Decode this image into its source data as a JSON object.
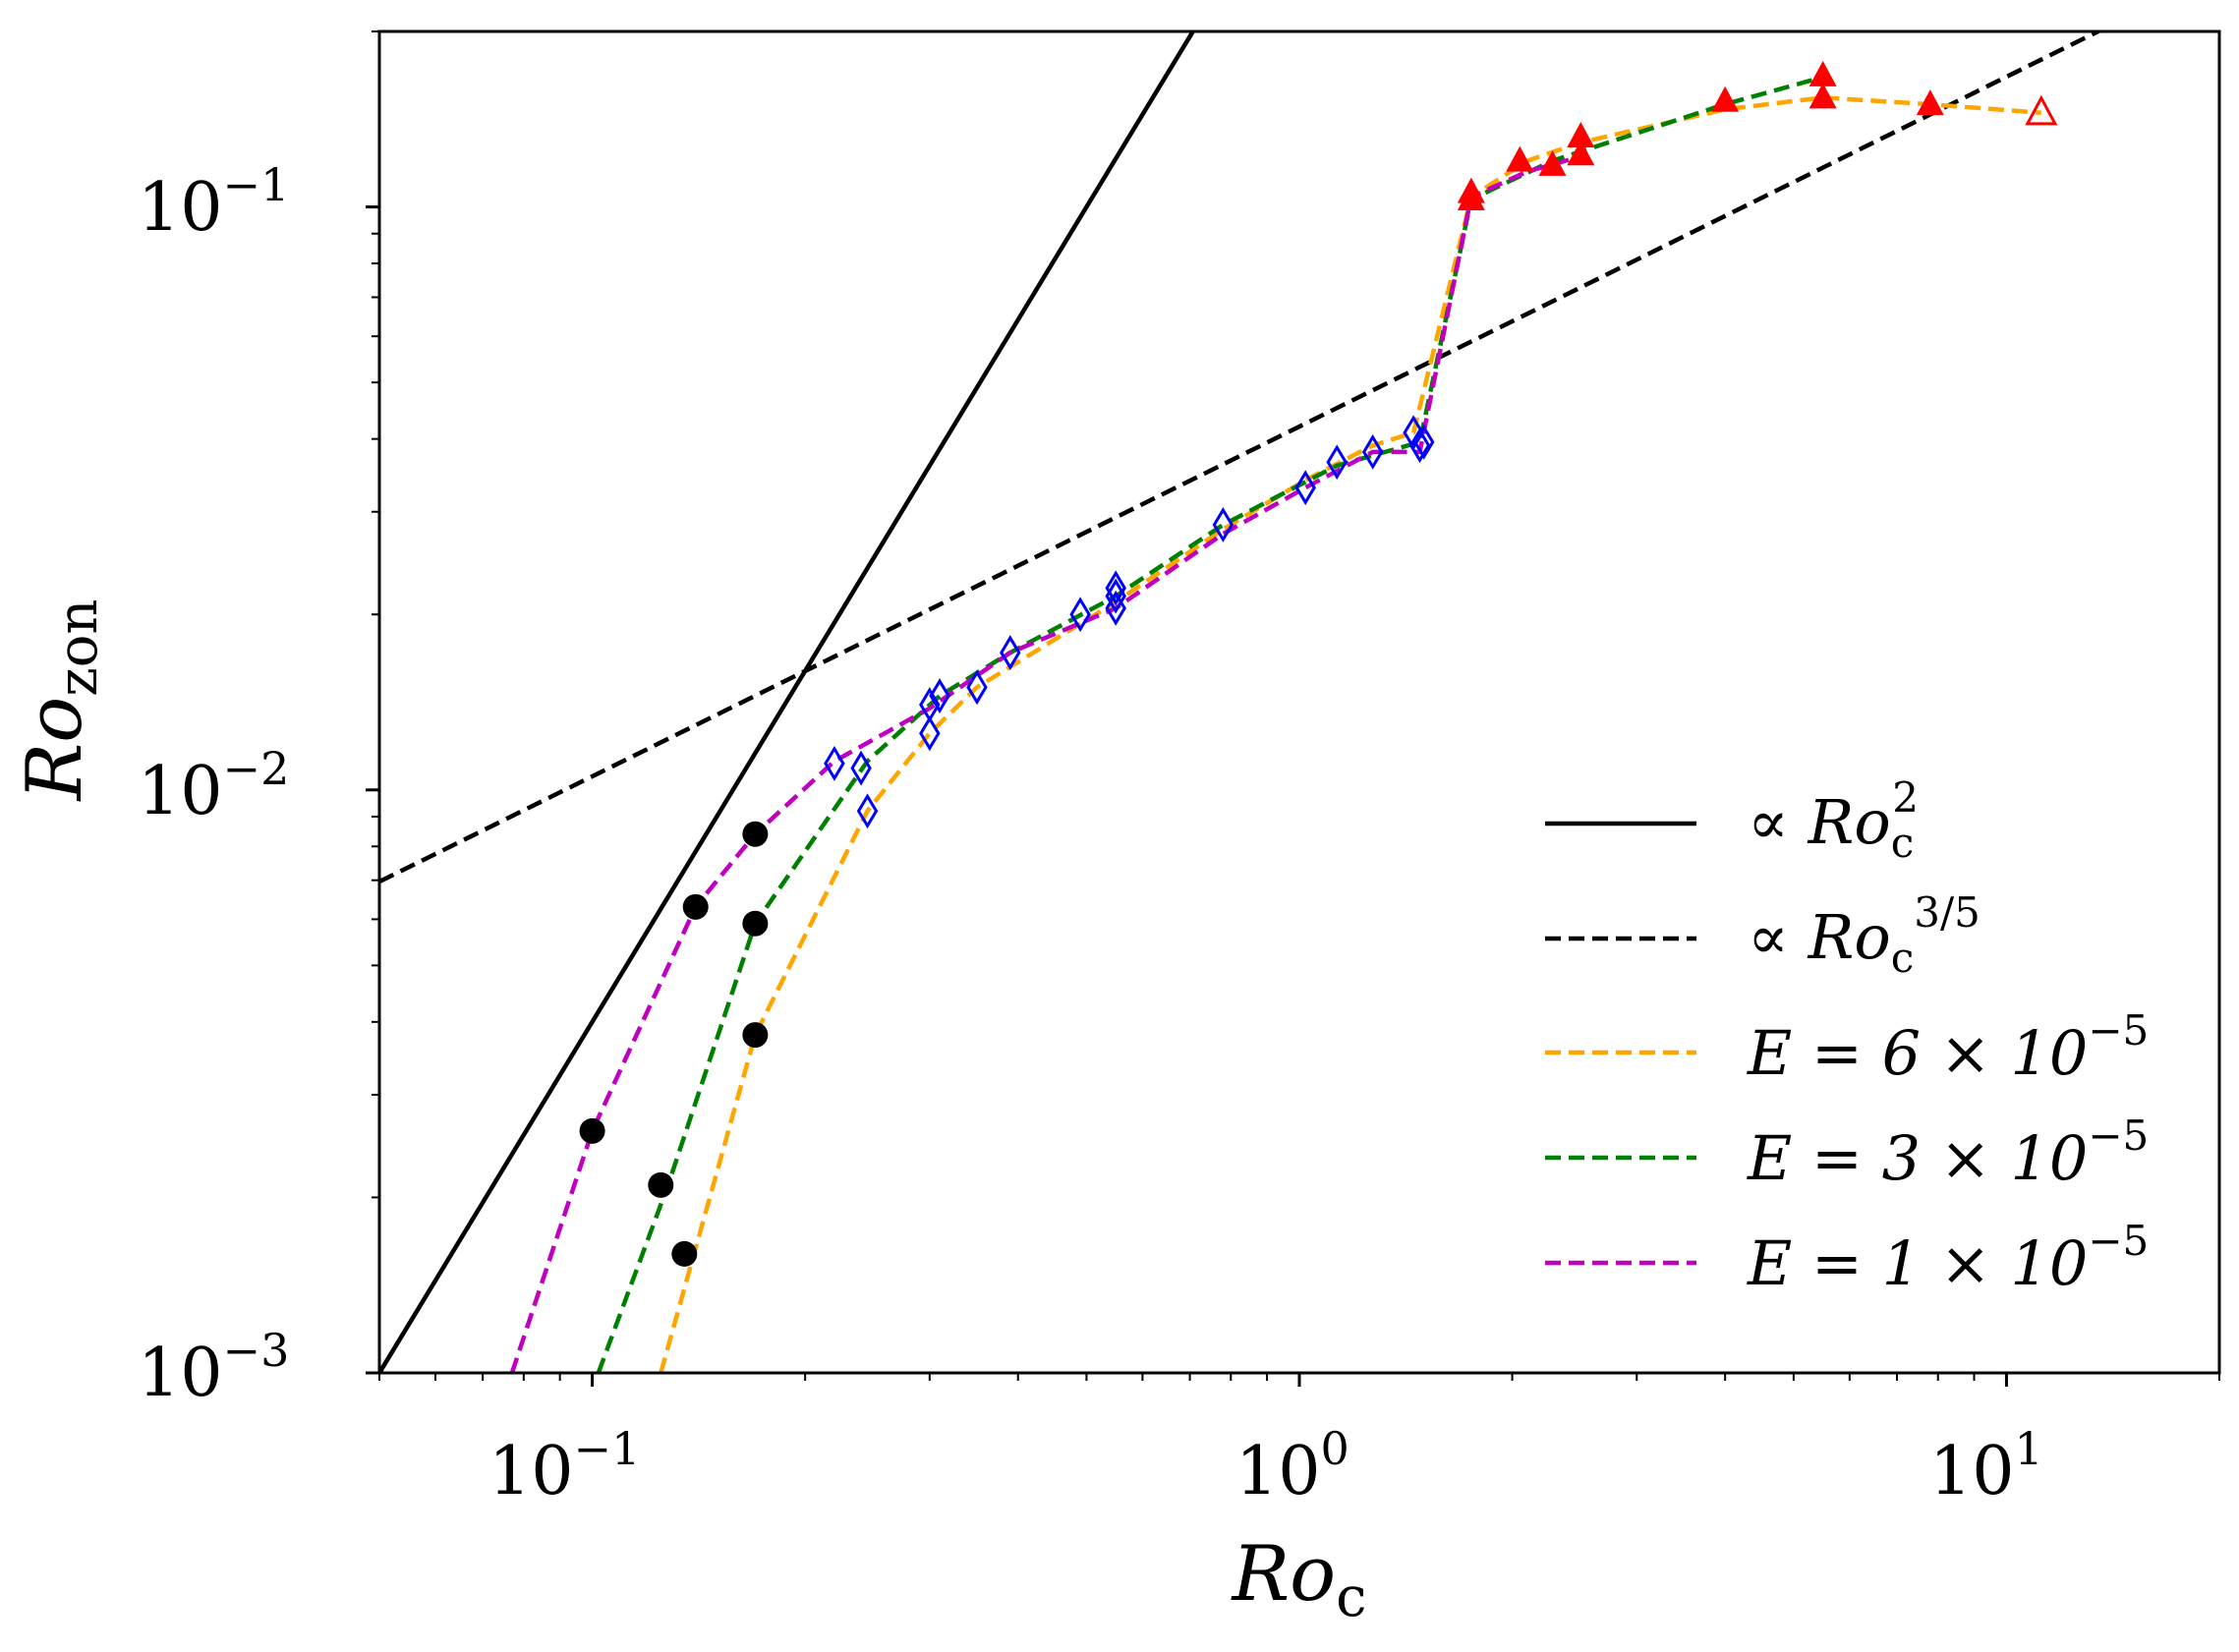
{
  "chart_data": {
    "type": "scatter",
    "title": "",
    "xlabel": "Ro_c",
    "ylabel": "Ro_zon",
    "xscale": "log",
    "yscale": "log",
    "xlim": [
      0.05,
      20
    ],
    "ylim": [
      0.001,
      0.2
    ],
    "xticks": [
      {
        "value": 0.1,
        "base": "10",
        "exp": "−1"
      },
      {
        "value": 1,
        "base": "10",
        "exp": "0"
      },
      {
        "value": 10,
        "base": "10",
        "exp": "1"
      }
    ],
    "yticks": [
      {
        "value": 0.001,
        "base": "10",
        "exp": "−3"
      },
      {
        "value": 0.01,
        "base": "10",
        "exp": "−2"
      },
      {
        "value": 0.1,
        "base": "10",
        "exp": "−1"
      }
    ],
    "reference_lines": [
      {
        "name": "∝ Ro_c^2",
        "power": 2,
        "coef": 0.4,
        "style": "solid",
        "color": "#000000",
        "legend_text": "∝ Ro",
        "legend_sub": "c",
        "legend_sup": "2"
      },
      {
        "name": "∝ Ro_c^3/5",
        "power": 0.6,
        "coef": 0.042,
        "style": "dashed",
        "color": "#000000",
        "legend_text": "∝ Ro",
        "legend_sub": "c",
        "legend_sup": "3/5"
      }
    ],
    "series": [
      {
        "name": "E = 6 × 10^-5",
        "legend_label": "E = 6 × 10",
        "legend_sup": "−5",
        "color": "#FFA500",
        "x": [
          0.125,
          0.17,
          0.245,
          0.3,
          0.35,
          0.55,
          0.78,
          1.02,
          1.27,
          1.45,
          1.75,
          2.1,
          2.5,
          4.0,
          5.5,
          7.8,
          11.2
        ],
        "y": [
          0.001,
          0.0038,
          0.0092,
          0.0125,
          0.015,
          0.021,
          0.028,
          0.034,
          0.039,
          0.041,
          0.104,
          0.12,
          0.129,
          0.147,
          0.154,
          0.15,
          0.145
        ]
      },
      {
        "name": "E = 3 × 10^-5",
        "legend_label": "E = 3 × 10",
        "legend_sup": "−5",
        "color": "#008000",
        "x": [
          0.102,
          0.128,
          0.17,
          0.245,
          0.31,
          0.39,
          0.55,
          0.78,
          1.13,
          1.48,
          1.75,
          2.28,
          4.0,
          5.5
        ],
        "y": [
          0.001,
          0.0021,
          0.0059,
          0.0112,
          0.0145,
          0.0172,
          0.0215,
          0.0285,
          0.036,
          0.0395,
          0.103,
          0.12,
          0.15,
          0.167
        ]
      },
      {
        "name": "E = 1 × 10^-5",
        "legend_label": "E = 1 × 10",
        "legend_sup": "−5",
        "color": "#BF00BF",
        "x": [
          0.077,
          0.1,
          0.14,
          0.17,
          0.22,
          0.3,
          0.39,
          0.55,
          0.78,
          1.02,
          1.27,
          1.48,
          1.75,
          2.1,
          2.5
        ],
        "y": [
          0.001,
          0.0026,
          0.0063,
          0.0084,
          0.0112,
          0.0138,
          0.0172,
          0.0205,
          0.0275,
          0.033,
          0.038,
          0.038,
          0.104,
          0.115,
          0.122
        ]
      }
    ],
    "markers": {
      "circles": {
        "color": "#000000",
        "x": [
          0.1,
          0.14,
          0.17,
          0.125,
          0.17,
          0.135,
          0.17
        ],
        "y": [
          0.0026,
          0.0063,
          0.0084,
          0.0021,
          0.0059,
          0.0016,
          0.0038
        ]
      },
      "diamonds": {
        "color": "#0000FF",
        "x": [
          0.22,
          0.24,
          0.245,
          0.3,
          0.3,
          0.31,
          0.35,
          0.39,
          0.49,
          0.55,
          0.55,
          0.55,
          0.78,
          1.02,
          1.13,
          1.27,
          1.45,
          1.48,
          1.5
        ],
        "y": [
          0.0111,
          0.0109,
          0.0092,
          0.0125,
          0.014,
          0.0145,
          0.015,
          0.0172,
          0.02,
          0.0205,
          0.0215,
          0.0222,
          0.0285,
          0.033,
          0.0365,
          0.038,
          0.041,
          0.039,
          0.0395
        ]
      },
      "filled_triangles": {
        "color": "#FF0000",
        "x": [
          1.75,
          1.75,
          2.05,
          2.28,
          2.5,
          2.5,
          4.0,
          5.5,
          5.5,
          7.8
        ],
        "y": [
          0.103,
          0.106,
          0.12,
          0.118,
          0.123,
          0.132,
          0.152,
          0.154,
          0.168,
          0.15
        ]
      },
      "open_triangles": {
        "color": "#FF0000",
        "x": [
          11.2
        ],
        "y": [
          0.145
        ]
      }
    },
    "legend_position": "lower-right",
    "grid": false
  }
}
